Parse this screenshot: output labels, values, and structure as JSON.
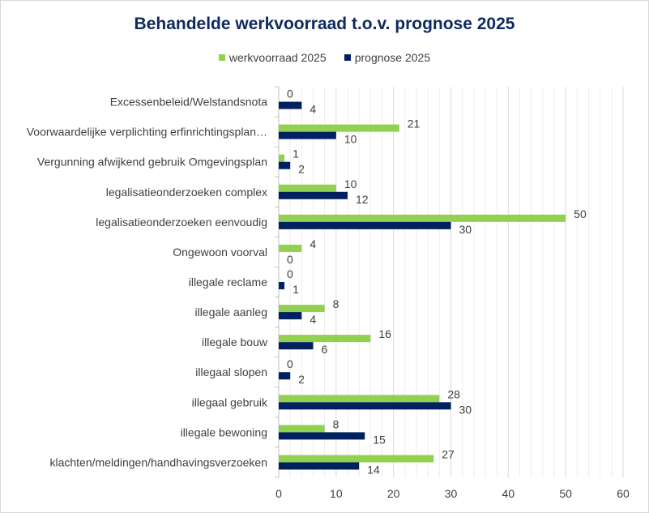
{
  "chart_data": {
    "type": "bar",
    "orientation": "horizontal",
    "title": "Behandelde werkvoorraad t.o.v. prognose 2025",
    "categories": [
      "Excessenbeleid/Welstandsnota",
      "Voorwaardelijke verplichting erfinrichtingsplan…",
      "Vergunning afwijkend gebruik Omgevingsplan",
      "legalisatieonderzoeken complex",
      "legalisatieonderzoeken eenvoudig",
      "Ongewoon voorval",
      "illegale reclame",
      "illegale aanleg",
      "illegale bouw",
      "illegaal slopen",
      "illegaal gebruik",
      "illegale bewoning",
      "klachten/meldingen/handhavingsverzoeken"
    ],
    "series": [
      {
        "name": "werkvoorraad 2025",
        "color": "#92d050",
        "values": [
          0,
          21,
          1,
          10,
          50,
          4,
          0,
          8,
          16,
          0,
          28,
          8,
          27
        ]
      },
      {
        "name": "prognose 2025",
        "color": "#002060",
        "values": [
          4,
          10,
          2,
          12,
          30,
          0,
          1,
          4,
          6,
          2,
          30,
          15,
          14
        ]
      }
    ],
    "xlim": [
      0,
      60
    ],
    "xticks": [
      0,
      10,
      20,
      30,
      40,
      50,
      60
    ],
    "grid": true,
    "legend": "top",
    "data_labels": true
  }
}
